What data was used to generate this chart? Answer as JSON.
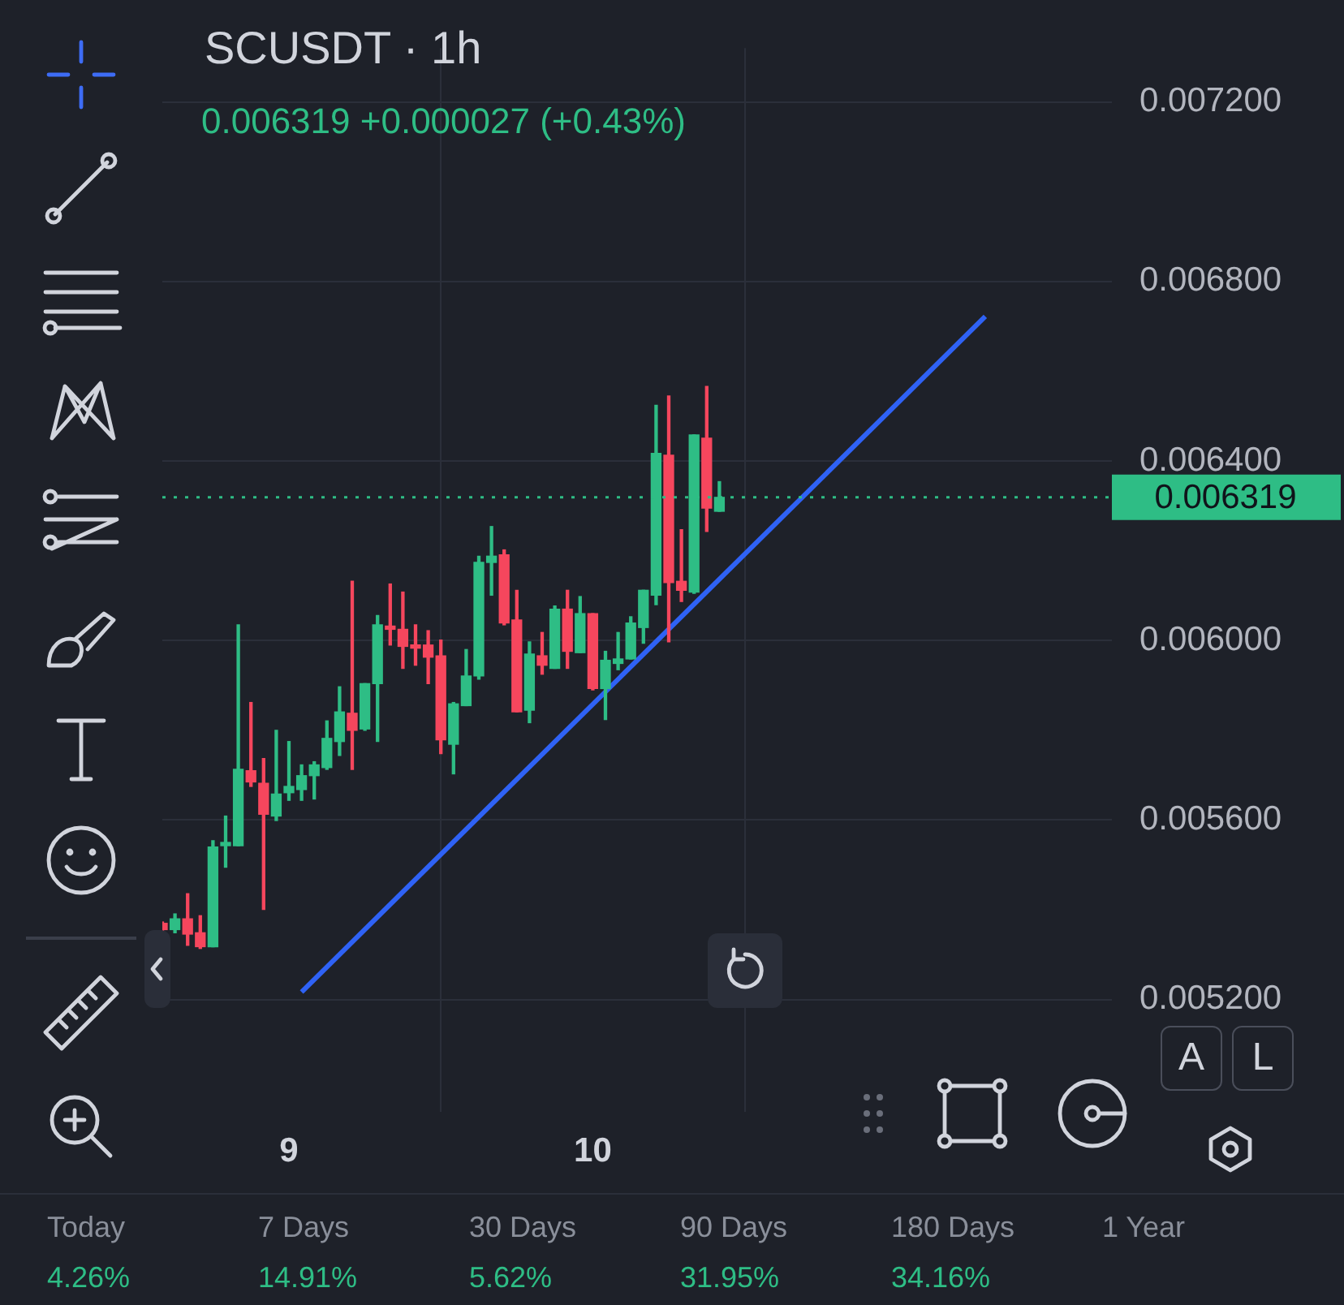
{
  "chart_data": {
    "type": "candlestick",
    "title": "SCUSDT · 1h",
    "subtitle": "0.006319 +0.000027 (+0.43%)",
    "categories": [
      null,
      null,
      null,
      null,
      null,
      null,
      null,
      null,
      null,
      null,
      "9",
      null,
      null,
      null,
      null,
      null,
      null,
      null,
      null,
      null,
      null,
      null,
      null,
      null,
      null,
      null,
      null,
      null,
      null,
      null,
      null,
      null,
      null,
      null,
      "10",
      null,
      null,
      null,
      null,
      null,
      null,
      null,
      null,
      null,
      null,
      null,
      null,
      null,
      null,
      null,
      null,
      null,
      null,
      null,
      null,
      null,
      null,
      null,
      null,
      null,
      null,
      null,
      null,
      null,
      null,
      null,
      null,
      null,
      null,
      null,
      null,
      null,
      null,
      null,
      null,
      null
    ],
    "ohlc": [
      [
        0.00537,
        0.005373,
        0.005353,
        0.005356
      ],
      [
        0.005356,
        0.005391,
        0.005349,
        0.00538
      ],
      [
        0.00538,
        0.005436,
        0.005321,
        0.005346
      ],
      [
        0.005349,
        0.005387,
        0.005314,
        0.005318
      ],
      [
        0.005318,
        0.005554,
        0.005318,
        0.00554
      ],
      [
        0.005543,
        0.005609,
        0.005495,
        0.005547
      ],
      [
        0.005543,
        0.006035,
        0.005543,
        0.005713
      ],
      [
        0.00571,
        0.005862,
        0.005675,
        0.005685
      ],
      [
        0.005682,
        0.005737,
        0.005401,
        0.005613
      ],
      [
        0.005609,
        0.0058,
        0.005599,
        0.005658
      ],
      [
        0.005661,
        0.005775,
        0.005644,
        0.005675
      ],
      [
        0.005668,
        0.005723,
        0.005644,
        0.005699
      ],
      [
        0.005699,
        0.00573,
        0.005647,
        0.005723
      ],
      [
        0.005717,
        0.005821,
        0.005713,
        0.005782
      ],
      [
        0.005775,
        0.005897,
        0.005744,
        0.005841
      ],
      [
        0.005838,
        0.006132,
        0.005713,
        0.0058
      ],
      [
        0.005803,
        0.005904,
        0.0058,
        0.005904
      ],
      [
        0.005904,
        0.006056,
        0.005775,
        0.006035
      ],
      [
        0.006032,
        0.006126,
        0.00599,
        0.006025
      ],
      [
        0.006025,
        0.006108,
        0.005938,
        0.005987
      ],
      [
        0.00599,
        0.006035,
        0.005945,
        0.005983
      ],
      [
        0.00599,
        0.006022,
        0.005904,
        0.005963
      ],
      [
        0.005966,
        0.006001,
        0.005748,
        0.005779
      ],
      [
        0.005769,
        0.005862,
        0.005703,
        0.005859
      ],
      [
        0.005855,
        0.00598,
        0.005855,
        0.005921
      ],
      [
        0.005921,
        0.006188,
        0.005914,
        0.006174
      ],
      [
        0.006174,
        0.006254,
        0.006101,
        0.006188
      ],
      [
        0.006191,
        0.006202,
        0.006035,
        0.006039
      ],
      [
        0.006046,
        0.006112,
        0.005841,
        0.005841
      ],
      [
        0.005845,
        0.005997,
        0.005817,
        0.00597
      ],
      [
        0.005966,
        0.006018,
        0.005925,
        0.005945
      ],
      [
        0.005938,
        0.006077,
        0.005938,
        0.00607
      ],
      [
        0.00607,
        0.006112,
        0.005938,
        0.005976
      ],
      [
        0.005973,
        0.006098,
        0.005973,
        0.00606
      ],
      [
        0.00606,
        0.00606,
        0.00589,
        0.005893
      ],
      [
        0.005893,
        0.005976,
        0.005824,
        0.005956
      ],
      [
        0.005949,
        0.006018,
        0.005935,
        0.005959
      ],
      [
        0.005959,
        0.006053,
        0.005959,
        0.006039
      ],
      [
        0.006029,
        0.006112,
        0.005994,
        0.006112
      ],
      [
        0.006101,
        0.006524,
        0.00608,
        0.006417
      ],
      [
        0.006413,
        0.006545,
        0.005997,
        0.006129
      ],
      [
        0.006132,
        0.006247,
        0.006087,
        0.006112
      ],
      [
        0.006108,
        0.006458,
        0.006105,
        0.006458
      ],
      [
        0.006451,
        0.006566,
        0.006243,
        0.006295
      ],
      [
        0.006288,
        0.006354,
        0.006288,
        0.006319
      ],
      null,
      null,
      null,
      null,
      null,
      null,
      null,
      null,
      null,
      null,
      null,
      null,
      null,
      null,
      null,
      null,
      null,
      null,
      null,
      null,
      null,
      null,
      null,
      null,
      null,
      null,
      null,
      null,
      null,
      null,
      null
    ],
    "series": [
      {
        "type": "line",
        "color": "#2f62f5",
        "values": [
          null,
          null,
          null,
          null,
          null,
          null,
          null,
          null,
          null,
          null,
          null,
          0.005217,
          null,
          null,
          null,
          null,
          null,
          null,
          null,
          null,
          null,
          null,
          null,
          null,
          null,
          null,
          null,
          null,
          null,
          null,
          null,
          null,
          null,
          null,
          null,
          null,
          null,
          null,
          null,
          null,
          null,
          null,
          null,
          null,
          null,
          null,
          null,
          null,
          null,
          null,
          null,
          null,
          null,
          null,
          null,
          null,
          null,
          null,
          null,
          null,
          null,
          null,
          null,
          null,
          null,
          0.006722,
          null,
          null,
          null,
          null,
          null,
          null,
          null,
          null,
          null,
          null
        ]
      }
    ],
    "ylim": [
      0.00495,
      0.00732
    ],
    "yticks": [
      {
        "value": 0.0052,
        "label": "0.005200"
      },
      {
        "value": 0.0056,
        "label": "0.005600"
      },
      {
        "value": 0.006,
        "label": "0.006000"
      },
      {
        "value": 0.0064,
        "label": "0.006400"
      },
      {
        "value": 0.0068,
        "label": "0.006800"
      },
      {
        "value": 0.0072,
        "label": "0.007200"
      }
    ],
    "ref_lines": [
      {
        "axis": "y",
        "value": 0.006319,
        "label": "0.006319",
        "color": "#2ebd85",
        "line_style": "dotted"
      }
    ],
    "grid": true,
    "legend": false,
    "annotations": [
      "Today",
      "7 Days",
      "30 Days",
      "90 Days",
      "180 Days",
      "1 Year",
      "4.26%",
      "14.91%",
      "5.62%",
      "31.95%",
      "34.16%",
      "A",
      "L"
    ]
  }
}
